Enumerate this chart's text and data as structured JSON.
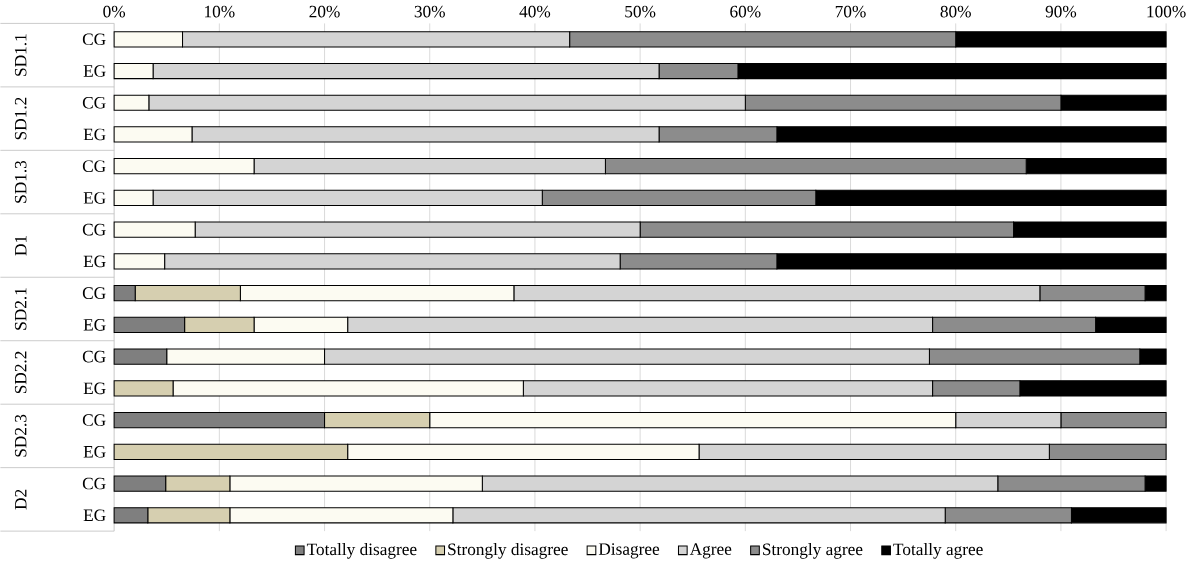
{
  "chart_data": {
    "type": "bar",
    "orientation": "horizontal",
    "stacked": true,
    "categories": [
      "CG",
      "EG",
      "CG",
      "EG",
      "CG",
      "EG",
      "CG",
      "EG",
      "CG",
      "EG",
      "CG",
      "EG",
      "CG",
      "EG",
      "CG",
      "EG"
    ],
    "annotations": [
      "SD1.1",
      "SD1.2",
      "SD1.3",
      "D1",
      "SD2.1",
      "SD2.2",
      "SD2.3",
      "D2"
    ],
    "series": [
      {
        "name": "Totally disagree",
        "color": "#7f7f7f",
        "values": [
          0,
          0,
          0,
          0,
          0,
          0,
          0,
          0,
          2,
          6.7,
          5,
          0,
          20,
          0,
          4.9,
          3.2
        ]
      },
      {
        "name": "Strongly disagree",
        "color": "#d6cfb0",
        "values": [
          0,
          0,
          0,
          0,
          0,
          0,
          0,
          0,
          10,
          6.6,
          0,
          5.6,
          10,
          22.2,
          6.1,
          7.8
        ]
      },
      {
        "name": "Disagree",
        "color": "#fcfbf2",
        "values": [
          6.5,
          3.7,
          3.3,
          7.4,
          13.3,
          3.7,
          7.7,
          4.8,
          26,
          8.9,
          15,
          33.3,
          50,
          33.4,
          24,
          21.2
        ]
      },
      {
        "name": "Agree",
        "color": "#d4d4d4",
        "values": [
          36.8,
          48.1,
          56.7,
          44.4,
          33.4,
          37,
          42.3,
          43.3,
          50,
          55.6,
          57.5,
          38.9,
          10,
          33.3,
          49,
          46.8
        ]
      },
      {
        "name": "Strongly agree",
        "color": "#8c8c8c",
        "values": [
          36.7,
          7.5,
          30,
          11.2,
          40,
          26,
          35.5,
          14.9,
          10,
          15.5,
          20,
          8.3,
          10,
          11.1,
          14,
          12
        ]
      },
      {
        "name": "Totally agree",
        "color": "#000000",
        "values": [
          20,
          40.7,
          10,
          37,
          13.3,
          33.3,
          14.5,
          37,
          2,
          6.7,
          2.5,
          13.9,
          0,
          0,
          2,
          9
        ]
      }
    ],
    "xlim": [
      0,
      100
    ],
    "xticks": [
      {
        "value": 0,
        "label": "0%"
      },
      {
        "value": 10,
        "label": "10%"
      },
      {
        "value": 20,
        "label": "20%"
      },
      {
        "value": 30,
        "label": "30%"
      },
      {
        "value": 40,
        "label": "40%"
      },
      {
        "value": 50,
        "label": "50%"
      },
      {
        "value": 60,
        "label": "60%"
      },
      {
        "value": 70,
        "label": "70%"
      },
      {
        "value": 80,
        "label": "80%"
      },
      {
        "value": 90,
        "label": "90%"
      },
      {
        "value": 100,
        "label": "100%"
      }
    ],
    "grid": "x",
    "legend": "bottom"
  }
}
